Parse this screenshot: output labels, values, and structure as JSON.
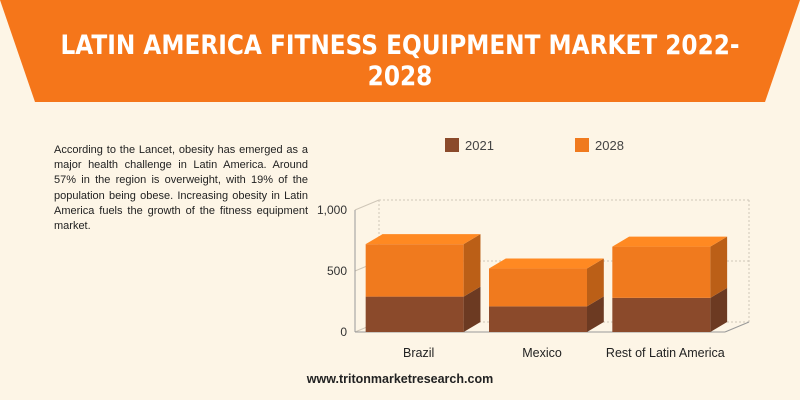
{
  "page": {
    "title": "LATIN AMERICA FITNESS EQUIPMENT MARKET 2022-2028",
    "description": "According to the Lancet, obesity has emerged as a major health challenge in Latin America. Around 57% in the region is overweight, with 19% of the population being obese. Increasing obesity in Latin America fuels the growth of the fitness equipment market.",
    "footer": "www.tritonmarketresearch.com",
    "colors": {
      "banner": "#f5761a",
      "background": "#fdf5e6"
    }
  },
  "chart_data": {
    "type": "bar",
    "stacked": true,
    "three_d": true,
    "categories": [
      "Brazil",
      "Mexico",
      "Rest of Latin America"
    ],
    "series": [
      {
        "name": "2021",
        "values": [
          290,
          210,
          280
        ],
        "color": "#8b4a2b"
      },
      {
        "name": "2028",
        "values": [
          430,
          310,
          420
        ],
        "color": "#f07a1e"
      }
    ],
    "yticks": [
      "0",
      "500",
      "1,000"
    ],
    "ylim": [
      0,
      1000
    ],
    "legend_position": "top",
    "grid": true
  }
}
